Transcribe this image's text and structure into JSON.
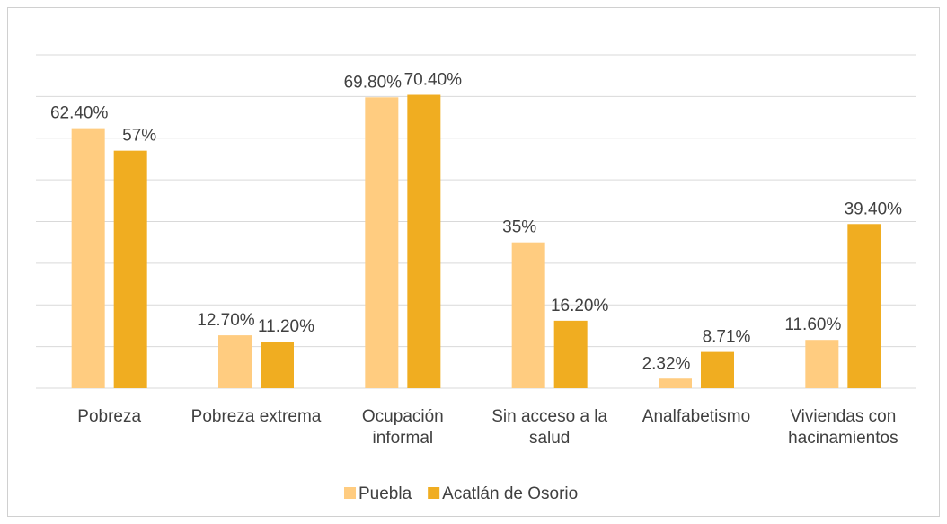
{
  "chart_data": {
    "type": "bar",
    "categories": [
      "Pobreza",
      "Pobreza extrema",
      "Ocupación informal",
      "Sin acceso a la salud",
      "Analfabetismo",
      "Viviendas con hacinamientos"
    ],
    "series": [
      {
        "name": "Puebla",
        "color": "#FFCC80",
        "values": [
          62.4,
          12.7,
          69.8,
          35,
          2.32,
          11.6
        ],
        "value_labels": [
          "62.40%",
          "12.70%",
          "69.80%",
          "35%",
          "2.32%",
          "11.60%"
        ]
      },
      {
        "name": "Acatlán de Osorio",
        "color": "#F0AD21",
        "values": [
          57,
          11.2,
          70.4,
          16.2,
          8.71,
          39.4
        ],
        "value_labels": [
          "57%",
          "11.20%",
          "70.40%",
          "16.20%",
          "8.71%",
          "39.40%"
        ]
      }
    ],
    "ylim": [
      0,
      80
    ],
    "yticks": [
      0,
      10,
      20,
      30,
      40,
      50,
      60,
      70,
      80
    ],
    "grid": true,
    "legend": "bottom"
  }
}
